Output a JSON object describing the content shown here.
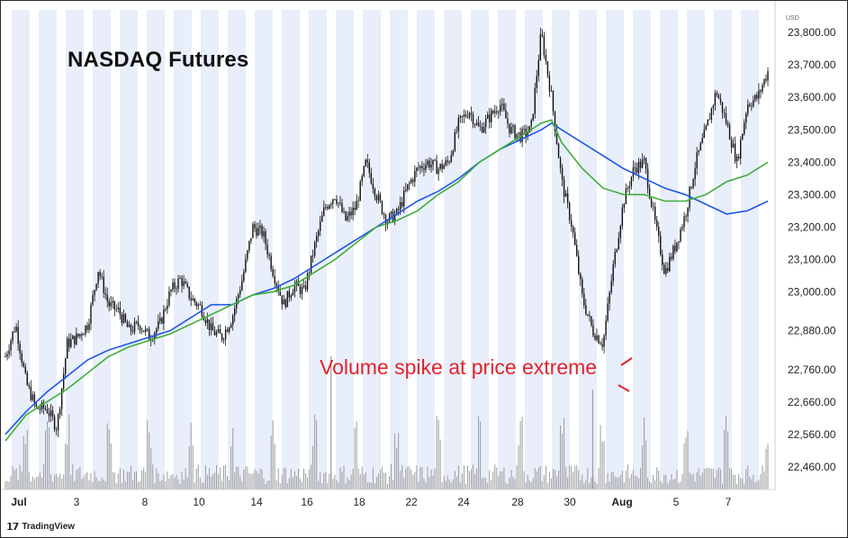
{
  "chart_data": {
    "type": "candlestick",
    "title": "NASDAQ Futures",
    "currency": "USD",
    "source": "TradingView",
    "y_ticks": [
      22460,
      22560,
      22660,
      22760,
      22880,
      23000,
      23100,
      23200,
      23300,
      23400,
      23500,
      23600,
      23700,
      23800
    ],
    "y_tick_labels": [
      "22,460.00",
      "22,560.00",
      "22,660.00",
      "22,760.00",
      "22,880.00",
      "23,000.00",
      "23,100.00",
      "23,200.00",
      "23,300.00",
      "23,400.00",
      "23,500.00",
      "23,600.00",
      "23,700.00",
      "23,800.00"
    ],
    "x_tick_labels": [
      "Jul",
      "3",
      "8",
      "10",
      "14",
      "16",
      "18",
      "22",
      "24",
      "28",
      "30",
      "Aug",
      "5",
      "7"
    ],
    "price_path": [
      [
        0,
        22800
      ],
      [
        1,
        22900
      ],
      [
        2,
        22720
      ],
      [
        3,
        22640
      ],
      [
        4,
        22640
      ],
      [
        5,
        22580
      ],
      [
        6,
        22840
      ],
      [
        7,
        22860
      ],
      [
        8,
        22900
      ],
      [
        9,
        23070
      ],
      [
        10,
        22960
      ],
      [
        11,
        22940
      ],
      [
        12,
        22880
      ],
      [
        13,
        22900
      ],
      [
        14,
        22860
      ],
      [
        15,
        22900
      ],
      [
        16,
        23000
      ],
      [
        17,
        23040
      ],
      [
        18,
        22980
      ],
      [
        19,
        22950
      ],
      [
        20,
        22880
      ],
      [
        21,
        22860
      ],
      [
        22,
        22920
      ],
      [
        23,
        23040
      ],
      [
        24,
        23200
      ],
      [
        25,
        23180
      ],
      [
        26,
        23060
      ],
      [
        27,
        22960
      ],
      [
        28,
        23020
      ],
      [
        29,
        23000
      ],
      [
        30,
        23140
      ],
      [
        31,
        23260
      ],
      [
        32,
        23300
      ],
      [
        33,
        23220
      ],
      [
        34,
        23260
      ],
      [
        35,
        23400
      ],
      [
        36,
        23300
      ],
      [
        37,
        23220
      ],
      [
        38,
        23240
      ],
      [
        39,
        23320
      ],
      [
        40,
        23380
      ],
      [
        41,
        23400
      ],
      [
        42,
        23380
      ],
      [
        43,
        23400
      ],
      [
        44,
        23520
      ],
      [
        45,
        23560
      ],
      [
        46,
        23500
      ],
      [
        47,
        23540
      ],
      [
        48,
        23580
      ],
      [
        49,
        23500
      ],
      [
        50,
        23480
      ],
      [
        51,
        23500
      ],
      [
        52,
        23800
      ],
      [
        53,
        23600
      ],
      [
        54,
        23340
      ],
      [
        55,
        23200
      ],
      [
        56,
        22980
      ],
      [
        57,
        22880
      ],
      [
        58,
        22840
      ],
      [
        59,
        23080
      ],
      [
        60,
        23280
      ],
      [
        61,
        23380
      ],
      [
        62,
        23400
      ],
      [
        63,
        23220
      ],
      [
        64,
        23060
      ],
      [
        65,
        23140
      ],
      [
        66,
        23240
      ],
      [
        67,
        23400
      ],
      [
        68,
        23500
      ],
      [
        69,
        23620
      ],
      [
        70,
        23520
      ],
      [
        71,
        23400
      ],
      [
        72,
        23580
      ],
      [
        73,
        23600
      ],
      [
        74,
        23680
      ]
    ],
    "ma_blue": [
      [
        0,
        22560
      ],
      [
        2,
        22630
      ],
      [
        4,
        22690
      ],
      [
        6,
        22740
      ],
      [
        8,
        22790
      ],
      [
        10,
        22820
      ],
      [
        12,
        22840
      ],
      [
        14,
        22860
      ],
      [
        16,
        22880
      ],
      [
        18,
        22920
      ],
      [
        20,
        22960
      ],
      [
        22,
        22960
      ],
      [
        24,
        22990
      ],
      [
        26,
        23010
      ],
      [
        28,
        23040
      ],
      [
        30,
        23080
      ],
      [
        32,
        23120
      ],
      [
        34,
        23160
      ],
      [
        36,
        23200
      ],
      [
        38,
        23240
      ],
      [
        40,
        23280
      ],
      [
        42,
        23310
      ],
      [
        44,
        23350
      ],
      [
        46,
        23400
      ],
      [
        48,
        23440
      ],
      [
        50,
        23470
      ],
      [
        52,
        23500
      ],
      [
        53,
        23520
      ],
      [
        54,
        23500
      ],
      [
        56,
        23460
      ],
      [
        58,
        23420
      ],
      [
        60,
        23380
      ],
      [
        62,
        23350
      ],
      [
        64,
        23320
      ],
      [
        66,
        23300
      ],
      [
        68,
        23270
      ],
      [
        70,
        23240
      ],
      [
        72,
        23250
      ],
      [
        74,
        23280
      ]
    ],
    "ma_green": [
      [
        0,
        22540
      ],
      [
        2,
        22620
      ],
      [
        4,
        22660
      ],
      [
        6,
        22700
      ],
      [
        8,
        22750
      ],
      [
        10,
        22800
      ],
      [
        12,
        22830
      ],
      [
        14,
        22850
      ],
      [
        16,
        22870
      ],
      [
        18,
        22900
      ],
      [
        20,
        22930
      ],
      [
        22,
        22960
      ],
      [
        24,
        22990
      ],
      [
        26,
        23000
      ],
      [
        28,
        23020
      ],
      [
        30,
        23060
      ],
      [
        32,
        23100
      ],
      [
        34,
        23150
      ],
      [
        36,
        23200
      ],
      [
        38,
        23220
      ],
      [
        40,
        23250
      ],
      [
        42,
        23300
      ],
      [
        44,
        23340
      ],
      [
        46,
        23400
      ],
      [
        48,
        23440
      ],
      [
        50,
        23480
      ],
      [
        52,
        23520
      ],
      [
        53,
        23530
      ],
      [
        54,
        23460
      ],
      [
        56,
        23380
      ],
      [
        58,
        23320
      ],
      [
        60,
        23300
      ],
      [
        62,
        23300
      ],
      [
        64,
        23280
      ],
      [
        66,
        23280
      ],
      [
        68,
        23300
      ],
      [
        70,
        23340
      ],
      [
        72,
        23360
      ],
      [
        74,
        23400
      ]
    ],
    "volume_spikes": [
      2,
      4,
      6,
      10,
      14,
      18,
      22,
      26,
      30,
      34,
      38,
      42,
      46,
      50,
      54,
      58,
      62,
      66,
      70,
      74
    ],
    "x_range": [
      0,
      74
    ],
    "y_range": [
      22390,
      23870
    ],
    "colors": {
      "candle": "#111111",
      "ma_blue": "#2157e6",
      "ma_green": "#3fae3a",
      "session_band": "#e9eefb",
      "volume": "#9c9c9c",
      "annotation": "#e0242c"
    },
    "annotation": "Volume spike at price extreme",
    "legend_position": "none",
    "grid": false
  }
}
